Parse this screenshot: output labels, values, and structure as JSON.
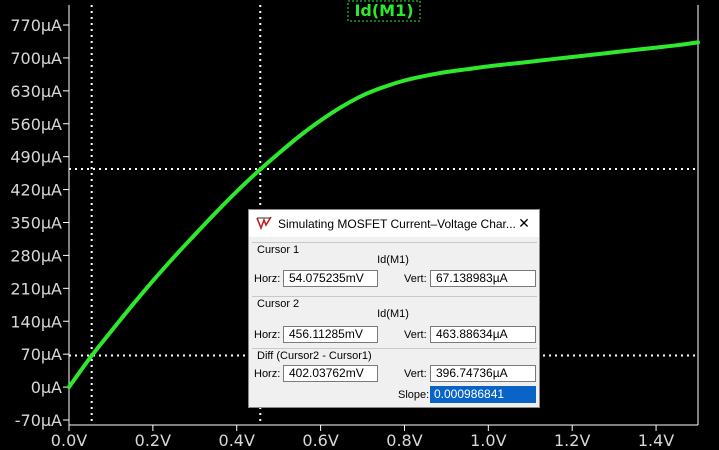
{
  "window": {
    "title": "Simulating MOSFET Current–Voltage Char...",
    "close_glyph": "✕"
  },
  "plot": {
    "trace_label": "Id(M1)",
    "colors": {
      "background": "#000000",
      "trace": "#2ee82e",
      "grid": "#ffffff",
      "ticks": "#d8d8d8"
    }
  },
  "cursors": {
    "cursor1": {
      "label": "Cursor 1",
      "trace": "Id(M1)",
      "horz_label": "Horz:",
      "horz": "54.075235mV",
      "vert_label": "Vert:",
      "vert": "67.138983µA"
    },
    "cursor2": {
      "label": "Cursor 2",
      "trace": "Id(M1)",
      "horz_label": "Horz:",
      "horz": "456.11285mV",
      "vert_label": "Vert:",
      "vert": "463.88634µA"
    },
    "diff": {
      "label": "Diff (Cursor2 - Cursor1)",
      "horz_label": "Horz:",
      "horz": "402.03762mV",
      "vert_label": "Vert:",
      "vert": "396.74736µA",
      "slope_label": "Slope:",
      "slope": "0.000986841"
    }
  },
  "chart_data": {
    "type": "line",
    "title": "Id(M1)",
    "xlabel": "",
    "ylabel": "",
    "xlim": [
      0.0,
      1.5
    ],
    "ylim": [
      -70,
      770
    ],
    "x_ticks": [
      "0.0V",
      "0.2V",
      "0.4V",
      "0.6V",
      "0.8V",
      "1.0V",
      "1.2V",
      "1.4V"
    ],
    "y_ticks": [
      "770µA",
      "700µA",
      "630µA",
      "560µA",
      "490µA",
      "420µA",
      "350µA",
      "280µA",
      "210µA",
      "140µA",
      "70µA",
      "0µA",
      "-70µA"
    ],
    "grid": false,
    "cursor_lines": {
      "x": [
        0.054075235,
        0.45611285
      ],
      "y": [
        67.138983,
        463.88634
      ]
    },
    "series": [
      {
        "name": "Id(M1)",
        "x": [
          0.0,
          0.05,
          0.1,
          0.15,
          0.2,
          0.25,
          0.3,
          0.35,
          0.4,
          0.45,
          0.5,
          0.55,
          0.6,
          0.65,
          0.7,
          0.75,
          0.8,
          0.85,
          0.9,
          0.95,
          1.0,
          1.05,
          1.1,
          1.15,
          1.2,
          1.25,
          1.3,
          1.35,
          1.4,
          1.45,
          1.5
        ],
        "values": [
          0,
          62,
          118,
          173,
          226,
          276,
          324,
          371,
          416,
          458,
          497,
          534,
          567,
          596,
          620,
          638,
          652,
          662,
          670,
          676,
          682,
          687,
          692,
          697,
          702,
          707,
          712,
          717,
          722,
          727,
          733
        ]
      }
    ]
  }
}
